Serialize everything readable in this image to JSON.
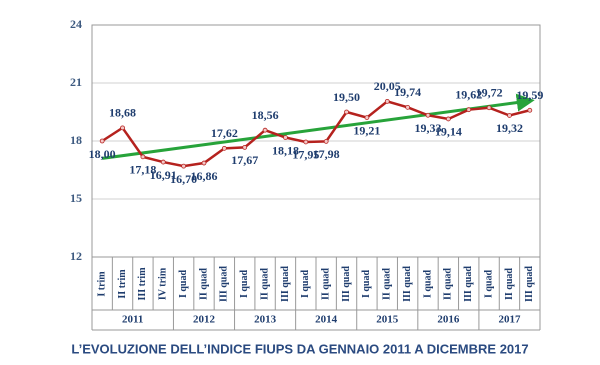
{
  "chart_data": {
    "type": "line",
    "title": "L’EVOLUZIONE DELL’INDICE FIUPS DA GENNAIO 2011 A DICEMBRE 2017",
    "groups": [
      {
        "name": "2011",
        "categories": [
          "I trim",
          "II trim",
          "III trim",
          "IV trim"
        ]
      },
      {
        "name": "2012",
        "categories": [
          "I quad",
          "II quad",
          "III quad"
        ]
      },
      {
        "name": "2013",
        "categories": [
          "I quad",
          "II quad",
          "III quad"
        ]
      },
      {
        "name": "2014",
        "categories": [
          "I quad",
          "II quad",
          "III quad"
        ]
      },
      {
        "name": "2015",
        "categories": [
          "I quad",
          "II quad",
          "III quad"
        ]
      },
      {
        "name": "2016",
        "categories": [
          "I quad",
          "II quad",
          "III quad"
        ]
      },
      {
        "name": "2017",
        "categories": [
          "I quad",
          "II quad",
          "III quad"
        ]
      }
    ],
    "values": [
      18.0,
      18.68,
      17.18,
      16.91,
      16.7,
      16.86,
      17.62,
      17.67,
      18.56,
      18.18,
      17.95,
      17.98,
      19.5,
      19.21,
      20.05,
      19.74,
      19.33,
      19.14,
      19.62,
      19.72,
      19.32,
      19.59
    ],
    "value_labels": [
      "18,00",
      "18,68",
      "17,18",
      "16,91",
      "16,70",
      "16,86",
      "17,62",
      "17,67",
      "18,56",
      "18,18",
      "17,95",
      "17,98",
      "19,50",
      "19,21",
      "20,05",
      "19,74",
      "19,33",
      "19,14",
      "19,62",
      "19,72",
      "19,32",
      "19,59"
    ],
    "color": "#b5221e",
    "trend": {
      "from": 17.1,
      "to": 20.05,
      "color": "#27a33a"
    },
    "ylim": [
      12,
      24
    ],
    "yticks": [
      12,
      15,
      18,
      21,
      24
    ],
    "grid": true
  }
}
